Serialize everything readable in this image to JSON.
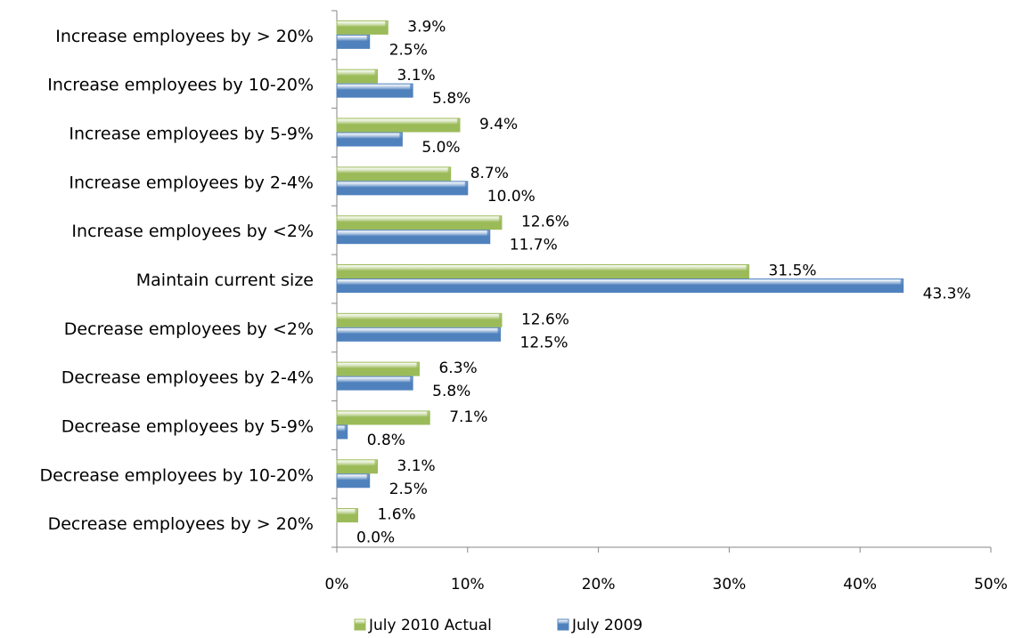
{
  "chart_data": {
    "type": "hbar",
    "categories": [
      "Increase employees by > 20%",
      "Increase employees by 10-20%",
      "Increase employees by 5-9%",
      "Increase employees by 2-4%",
      "Increase employees by <2%",
      "Maintain current size",
      "Decrease employees by <2%",
      "Decrease employees by 2-4%",
      "Decrease employees by 5-9%",
      "Decrease employees by 10-20%",
      "Decrease employees by > 20%"
    ],
    "series": [
      {
        "name": "July 2010 Actual",
        "color": "#9bbb59",
        "values": [
          3.9,
          3.1,
          9.4,
          8.7,
          12.6,
          31.5,
          12.6,
          6.3,
          7.1,
          3.1,
          1.6
        ],
        "value_labels": [
          "3.9%",
          "3.1%",
          "9.4%",
          "8.7%",
          "12.6%",
          "31.5%",
          "12.6%",
          "6.3%",
          "7.1%",
          "3.1%",
          "1.6%"
        ]
      },
      {
        "name": "July 2009",
        "color": "#4f81bd",
        "values": [
          2.5,
          5.8,
          5.0,
          10.0,
          11.7,
          43.3,
          12.5,
          5.8,
          0.8,
          2.5,
          0.0
        ],
        "value_labels": [
          "2.5%",
          "5.8%",
          "5.0%",
          "10.0%",
          "11.7%",
          "43.3%",
          "12.5%",
          "5.8%",
          "0.8%",
          "2.5%",
          "0.0%"
        ]
      }
    ],
    "xlim": [
      0,
      50
    ],
    "xticks": [
      {
        "value": 0,
        "label": "0%"
      },
      {
        "value": 10,
        "label": "10%"
      },
      {
        "value": 20,
        "label": "20%"
      },
      {
        "value": 30,
        "label": "30%"
      },
      {
        "value": 40,
        "label": "40%"
      },
      {
        "value": 50,
        "label": "50%"
      }
    ],
    "legend": "bottom"
  }
}
